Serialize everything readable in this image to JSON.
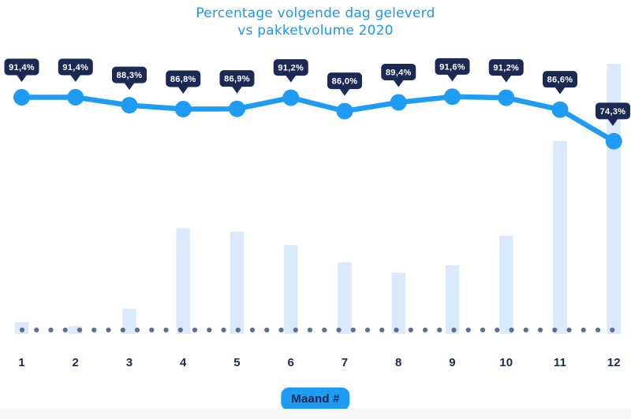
{
  "page": {
    "background": "#ffffff",
    "bottom_strip_color": "#f8f7f5"
  },
  "title": {
    "line1": "Percentage volgende dag geleverd",
    "line2": "vs pakketvolume 2020",
    "color": "#2096f2"
  },
  "chart_data": {
    "type": "combo",
    "title": "Percentage volgende dag geleverd vs pakketvolume 2020",
    "categories": [
      "1",
      "2",
      "3",
      "4",
      "5",
      "6",
      "7",
      "8",
      "9",
      "10",
      "11",
      "12"
    ],
    "xlabel": "Maand #",
    "grid": false,
    "y_axis": "hidden",
    "legend_position": "none",
    "series": [
      {
        "name": "Percentage volgende dag geleverd",
        "type": "line",
        "unit": "%",
        "values": [
          91.4,
          91.4,
          88.3,
          86.8,
          86.9,
          91.2,
          86.0,
          89.4,
          91.6,
          91.2,
          86.6,
          74.3
        ],
        "labels": [
          "91,4%",
          "91,4%",
          "88,3%",
          "86,8%",
          "86,9%",
          "91,2%",
          "86,0%",
          "89,4%",
          "91,6%",
          "91,2%",
          "86,6%",
          "74,3%"
        ],
        "color": "#1e9cf4",
        "marker": "circle",
        "label_badge_color": "#1b2a54",
        "label_text_color": "#ffffff"
      },
      {
        "name": "Pakketvolume",
        "type": "bar",
        "unit": "relative-index (bars unlabeled in chart, heights estimated, max month = 100)",
        "values": [
          4.4,
          2.9,
          9.3,
          39.1,
          37.9,
          32.9,
          26.5,
          22.7,
          25.4,
          36.4,
          71.4,
          100
        ],
        "color": "#dbeafb"
      }
    ],
    "baseline_dots": {
      "description": "dotted horizontal baseline along x-axis",
      "color": "#5c6f95"
    },
    "x_axis": {
      "tick_label_color": "#1b2a54",
      "axis_badge_label": "Maand #",
      "axis_badge_bg": "#1e9cf4",
      "axis_badge_text_color": "#14284f"
    }
  }
}
